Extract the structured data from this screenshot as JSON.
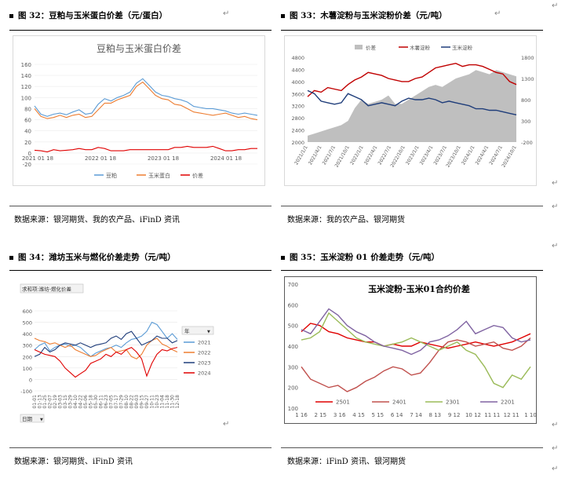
{
  "figures": [
    {
      "title": "图 32：豆粕与玉米蛋白价差（元/蛋白）",
      "source": "数据来源：银河期货、我的农产品、iFinD 资讯"
    },
    {
      "title": "图 33：木薯淀粉与玉米淀粉价差（元/吨）",
      "source": "数据来源：我的农产品、银河期货"
    },
    {
      "title": "图 34：潍坊玉米与燃化价差走势（元/吨）",
      "source": "数据来源：银河期货、iFinD 资讯"
    },
    {
      "title": "图 35：玉米淀粉 01 价差走势（元/吨）",
      "source": "数据来源：iFinD 资讯、银河期货"
    }
  ],
  "chart_data": [
    {
      "type": "line",
      "title": "豆粕与玉米蛋白价差",
      "yticks": [
        "160",
        "140",
        "120",
        "100",
        "80",
        "60",
        "40",
        "20",
        "0",
        "-20"
      ],
      "ylim": [
        -20,
        160
      ],
      "xticks": [
        "2021 01 18",
        "2022 01 18",
        "2023 01 18",
        "2024 01 18"
      ],
      "series": [
        {
          "name": "豆粕",
          "color": "#5b9bd5",
          "values": [
            85,
            70,
            66,
            70,
            72,
            69,
            74,
            78,
            70,
            72,
            88,
            98,
            94,
            100,
            104,
            110,
            126,
            134,
            122,
            110,
            104,
            102,
            98,
            96,
            92,
            84,
            82,
            80,
            80,
            78,
            76,
            72,
            70,
            72,
            70,
            68
          ]
        },
        {
          "name": "玉米蛋白",
          "color": "#ed7d31",
          "values": [
            80,
            66,
            62,
            64,
            68,
            64,
            68,
            70,
            64,
            66,
            78,
            90,
            90,
            96,
            100,
            104,
            120,
            128,
            116,
            104,
            98,
            96,
            88,
            86,
            80,
            74,
            72,
            70,
            68,
            70,
            72,
            68,
            64,
            66,
            62,
            60
          ]
        },
        {
          "name": "价差",
          "color": "#e00000",
          "values": [
            5,
            4,
            2,
            6,
            4,
            5,
            6,
            8,
            6,
            6,
            10,
            8,
            4,
            4,
            4,
            6,
            6,
            6,
            6,
            6,
            6,
            6,
            10,
            10,
            12,
            10,
            10,
            10,
            12,
            8,
            4,
            4,
            6,
            6,
            8,
            8
          ]
        }
      ]
    },
    {
      "type": "line",
      "yticks_left": [
        "4800",
        "4400",
        "4000",
        "3600",
        "3200",
        "2800",
        "2400",
        "2000"
      ],
      "ylim_left": [
        2000,
        4800
      ],
      "yticks_right": [
        "1800",
        "1300",
        "800",
        "300",
        "-200"
      ],
      "ylim_right": [
        -200,
        1800
      ],
      "xticks": [
        "2021/1/1",
        "2021/4/1",
        "2021/7/1",
        "2021/10/1",
        "2022/1/1",
        "2022/4/1",
        "2022/7/1",
        "2022/10/1",
        "2023/1/1",
        "2023/4/1",
        "2023/7/1",
        "2023/10/1",
        "2024/1/1",
        "2024/4/1",
        "2024/7/1",
        "2024/10/1"
      ],
      "series": [
        {
          "name": "价差",
          "color": "#bfbfbf",
          "type": "area",
          "axis": "right",
          "values": [
            -50,
            0,
            50,
            100,
            150,
            200,
            300,
            600,
            800,
            700,
            750,
            800,
            900,
            700,
            700,
            800,
            900,
            1000,
            1100,
            1150,
            1100,
            1200,
            1300,
            1350,
            1400,
            1500,
            1450,
            1400,
            1500,
            1450,
            1400,
            1350
          ]
        },
        {
          "name": "木薯淀粉",
          "color": "#c00000",
          "axis": "left",
          "values": [
            3500,
            3700,
            3650,
            3800,
            3750,
            3700,
            3900,
            4050,
            4150,
            4300,
            4250,
            4200,
            4100,
            4050,
            4000,
            4000,
            4100,
            4150,
            4300,
            4450,
            4500,
            4550,
            4600,
            4500,
            4550,
            4550,
            4500,
            4400,
            4300,
            4250,
            4000,
            3900
          ]
        },
        {
          "name": "玉米淀粉",
          "color": "#1f3d7a",
          "axis": "left",
          "values": [
            3700,
            3600,
            3350,
            3300,
            3250,
            3300,
            3600,
            3500,
            3400,
            3200,
            3250,
            3300,
            3250,
            3200,
            3350,
            3450,
            3400,
            3400,
            3450,
            3400,
            3300,
            3350,
            3300,
            3250,
            3200,
            3100,
            3100,
            3050,
            3050,
            3000,
            2950,
            2900
          ]
        }
      ]
    },
    {
      "type": "line",
      "header": "求和项:潍坊-燃化价差",
      "legend_title": "年",
      "axis_label": "日期",
      "yticks": [
        "600",
        "500",
        "400",
        "300",
        "200",
        "100",
        "0",
        "-100"
      ],
      "ylim": [
        -100,
        600
      ],
      "xticks": [
        "01-01",
        "01-13",
        "01-25",
        "02-07",
        "02-19",
        "03-03",
        "03-15",
        "03-29",
        "04-10",
        "04-22",
        "05-06",
        "05-18",
        "05-30",
        "06-11",
        "06-23",
        "07-05",
        "07-17",
        "07-29",
        "08-10",
        "08-22",
        "09-03",
        "09-15",
        "09-27",
        "10-11",
        "10-23",
        "11-04",
        "11-18",
        "11-30",
        "12-18"
      ],
      "series": [
        {
          "name": "2021",
          "color": "#5b9bd5",
          "values": [
            260,
            300,
            320,
            250,
            280,
            300,
            310,
            290,
            300,
            280,
            240,
            200,
            230,
            250,
            270,
            280,
            300,
            280,
            320,
            350,
            360,
            380,
            420,
            500,
            480,
            420,
            360,
            400,
            350
          ]
        },
        {
          "name": "2022",
          "color": "#ed7d31",
          "values": [
            360,
            340,
            330,
            310,
            320,
            300,
            280,
            300,
            260,
            240,
            220,
            200,
            210,
            240,
            260,
            280,
            240,
            250,
            260,
            200,
            180,
            220,
            300,
            340,
            360,
            310,
            290,
            260,
            240
          ]
        },
        {
          "name": "2023",
          "color": "#1f3d7a",
          "values": [
            200,
            220,
            280,
            240,
            260,
            300,
            320,
            310,
            300,
            320,
            300,
            280,
            300,
            310,
            320,
            360,
            380,
            350,
            400,
            420,
            360,
            300,
            320,
            340,
            380,
            360,
            360,
            320,
            340
          ]
        },
        {
          "name": "2024",
          "color": "#e00000",
          "values": [
            260,
            240,
            220,
            210,
            200,
            160,
            100,
            60,
            20,
            50,
            80,
            140,
            160,
            180,
            220,
            200,
            240,
            220,
            260,
            280,
            240,
            180,
            30,
            140,
            220,
            260,
            250,
            270,
            280
          ]
        }
      ]
    },
    {
      "type": "line",
      "title": "玉米淀粉-玉米01合约价差",
      "yticks": [
        "700",
        "600",
        "500",
        "400",
        "300",
        "200",
        "100"
      ],
      "ylim": [
        100,
        700
      ],
      "xticks": [
        "1 16",
        "2 15",
        "3 16",
        "4 15",
        "5 15",
        "6 14",
        "7 14",
        "8 13",
        "9 12",
        "10 12",
        "11 11",
        "12 11",
        "1 10"
      ],
      "series": [
        {
          "name": "2501",
          "color": "#e00000",
          "values": [
            470,
            510,
            500,
            470,
            460,
            440,
            430,
            420,
            420,
            400,
            410,
            400,
            400,
            420,
            410,
            400,
            390,
            400,
            410,
            420,
            410,
            400,
            410,
            420,
            440,
            460
          ]
        },
        {
          "name": "2401",
          "color": "#c0504d",
          "values": [
            300,
            240,
            220,
            200,
            210,
            180,
            200,
            230,
            250,
            280,
            300,
            290,
            260,
            270,
            320,
            380,
            420,
            430,
            420,
            400,
            410,
            420,
            390,
            380,
            400,
            440
          ]
        },
        {
          "name": "2301",
          "color": "#9bbb59",
          "values": [
            430,
            440,
            470,
            560,
            520,
            480,
            440,
            420,
            410,
            400,
            410,
            420,
            440,
            420,
            400,
            380,
            400,
            420,
            380,
            360,
            300,
            220,
            200,
            260,
            240,
            300
          ]
        },
        {
          "name": "2201",
          "color": "#8064a2",
          "values": [
            480,
            460,
            520,
            580,
            550,
            500,
            470,
            450,
            420,
            400,
            390,
            380,
            360,
            380,
            420,
            430,
            450,
            480,
            520,
            460,
            480,
            500,
            490,
            440,
            420,
            430
          ]
        }
      ]
    }
  ]
}
